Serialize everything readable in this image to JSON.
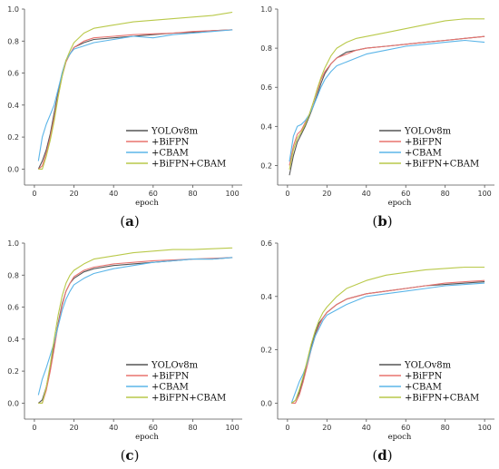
{
  "chart_data": [
    {
      "type": "line",
      "caption": "a",
      "xlabel": "epoch",
      "xlim": [
        -5,
        105
      ],
      "ylim": [
        -0.1,
        1.0
      ],
      "xticks": [
        0,
        20,
        40,
        60,
        80,
        100
      ],
      "yticks": [
        0.0,
        0.2,
        0.4,
        0.6,
        0.8,
        1.0
      ],
      "ytick_labels": [
        "0.0",
        "0.2",
        "0.4",
        "0.6",
        "0.8",
        "1.0"
      ],
      "legend": "lower-right",
      "series": [
        {
          "name": "YOLOv8m",
          "color": "#555555",
          "x": [
            2,
            4,
            6,
            8,
            10,
            12,
            14,
            16,
            18,
            20,
            25,
            30,
            40,
            50,
            60,
            70,
            80,
            90,
            100
          ],
          "y": [
            0.0,
            0.05,
            0.12,
            0.22,
            0.35,
            0.48,
            0.6,
            0.68,
            0.72,
            0.76,
            0.79,
            0.81,
            0.82,
            0.83,
            0.84,
            0.85,
            0.855,
            0.865,
            0.87
          ]
        },
        {
          "name": "+BiFPN",
          "color": "#e8736f",
          "x": [
            2,
            4,
            6,
            8,
            10,
            12,
            14,
            16,
            18,
            20,
            25,
            30,
            40,
            50,
            60,
            70,
            80,
            90,
            100
          ],
          "y": [
            0.0,
            0.02,
            0.1,
            0.2,
            0.32,
            0.46,
            0.58,
            0.67,
            0.72,
            0.76,
            0.8,
            0.82,
            0.83,
            0.84,
            0.845,
            0.85,
            0.86,
            0.865,
            0.87
          ]
        },
        {
          "name": "+CBAM",
          "color": "#5bb5e8",
          "x": [
            2,
            4,
            6,
            8,
            10,
            12,
            14,
            16,
            18,
            20,
            25,
            30,
            40,
            50,
            60,
            70,
            80,
            90,
            100
          ],
          "y": [
            0.05,
            0.2,
            0.28,
            0.34,
            0.4,
            0.5,
            0.6,
            0.68,
            0.72,
            0.75,
            0.77,
            0.79,
            0.81,
            0.83,
            0.82,
            0.84,
            0.85,
            0.86,
            0.87
          ]
        },
        {
          "name": "+BiFPN+CBAM",
          "color": "#b9c94a",
          "x": [
            2,
            4,
            6,
            8,
            10,
            12,
            14,
            16,
            18,
            20,
            25,
            30,
            40,
            50,
            60,
            70,
            80,
            90,
            100
          ],
          "y": [
            0.0,
            0.0,
            0.08,
            0.18,
            0.3,
            0.45,
            0.58,
            0.68,
            0.74,
            0.79,
            0.85,
            0.88,
            0.9,
            0.92,
            0.93,
            0.94,
            0.95,
            0.96,
            0.98
          ]
        }
      ]
    },
    {
      "type": "line",
      "caption": "b",
      "xlabel": "epoch",
      "xlim": [
        -5,
        105
      ],
      "ylim": [
        0.1,
        1.0
      ],
      "xticks": [
        0,
        20,
        40,
        60,
        80,
        100
      ],
      "yticks": [
        0.2,
        0.4,
        0.6,
        0.8,
        1.0
      ],
      "ytick_labels": [
        "0.2",
        "0.4",
        "0.6",
        "0.8",
        "1.0"
      ],
      "legend": "lower-right",
      "series": [
        {
          "name": "YOLOv8m",
          "color": "#555555",
          "x": [
            1,
            3,
            5,
            7,
            9,
            11,
            13,
            15,
            17,
            19,
            22,
            25,
            30,
            35,
            40,
            50,
            60,
            70,
            80,
            90,
            100
          ],
          "y": [
            0.15,
            0.25,
            0.32,
            0.36,
            0.4,
            0.45,
            0.5,
            0.56,
            0.62,
            0.67,
            0.72,
            0.75,
            0.78,
            0.79,
            0.8,
            0.81,
            0.82,
            0.83,
            0.84,
            0.85,
            0.86
          ]
        },
        {
          "name": "+BiFPN",
          "color": "#e8736f",
          "x": [
            1,
            3,
            5,
            7,
            9,
            11,
            13,
            15,
            17,
            19,
            22,
            25,
            30,
            35,
            40,
            50,
            60,
            70,
            80,
            90,
            100
          ],
          "y": [
            0.2,
            0.3,
            0.36,
            0.38,
            0.42,
            0.46,
            0.52,
            0.58,
            0.64,
            0.68,
            0.72,
            0.75,
            0.77,
            0.79,
            0.8,
            0.81,
            0.82,
            0.83,
            0.84,
            0.85,
            0.86
          ]
        },
        {
          "name": "+CBAM",
          "color": "#5bb5e8",
          "x": [
            1,
            3,
            5,
            7,
            9,
            11,
            13,
            15,
            17,
            19,
            22,
            25,
            30,
            35,
            40,
            50,
            60,
            70,
            80,
            90,
            100
          ],
          "y": [
            0.22,
            0.35,
            0.4,
            0.41,
            0.43,
            0.46,
            0.5,
            0.55,
            0.6,
            0.64,
            0.68,
            0.71,
            0.73,
            0.75,
            0.77,
            0.79,
            0.81,
            0.82,
            0.83,
            0.84,
            0.83
          ]
        },
        {
          "name": "+BiFPN+CBAM",
          "color": "#b9c94a",
          "x": [
            1,
            3,
            5,
            7,
            9,
            11,
            13,
            15,
            17,
            19,
            22,
            25,
            30,
            35,
            40,
            50,
            60,
            70,
            80,
            90,
            100
          ],
          "y": [
            0.18,
            0.28,
            0.34,
            0.37,
            0.41,
            0.46,
            0.52,
            0.59,
            0.65,
            0.7,
            0.76,
            0.8,
            0.83,
            0.85,
            0.86,
            0.88,
            0.9,
            0.92,
            0.94,
            0.95,
            0.95
          ]
        }
      ]
    },
    {
      "type": "line",
      "caption": "c",
      "xlabel": "epoch",
      "xlim": [
        -5,
        105
      ],
      "ylim": [
        -0.1,
        1.0
      ],
      "xticks": [
        0,
        20,
        40,
        60,
        80,
        100
      ],
      "yticks": [
        0.0,
        0.2,
        0.4,
        0.6,
        0.8,
        1.0
      ],
      "ytick_labels": [
        "0.0",
        "0.2",
        "0.4",
        "0.6",
        "0.8",
        "1.0"
      ],
      "legend": "lower-right",
      "series": [
        {
          "name": "YOLOv8m",
          "color": "#555555",
          "x": [
            2,
            4,
            6,
            8,
            10,
            12,
            14,
            16,
            18,
            20,
            25,
            30,
            40,
            50,
            60,
            70,
            80,
            90,
            100
          ],
          "y": [
            0.0,
            0.02,
            0.1,
            0.22,
            0.36,
            0.5,
            0.62,
            0.7,
            0.75,
            0.78,
            0.82,
            0.84,
            0.86,
            0.87,
            0.88,
            0.89,
            0.9,
            0.9,
            0.91
          ]
        },
        {
          "name": "+BiFPN",
          "color": "#e8736f",
          "x": [
            2,
            4,
            6,
            8,
            10,
            12,
            14,
            16,
            18,
            20,
            25,
            30,
            40,
            50,
            60,
            70,
            80,
            90,
            100
          ],
          "y": [
            0.0,
            0.0,
            0.08,
            0.2,
            0.34,
            0.49,
            0.61,
            0.7,
            0.75,
            0.79,
            0.83,
            0.85,
            0.87,
            0.88,
            0.89,
            0.895,
            0.9,
            0.905,
            0.91
          ]
        },
        {
          "name": "+CBAM",
          "color": "#5bb5e8",
          "x": [
            2,
            4,
            6,
            8,
            10,
            12,
            14,
            16,
            18,
            20,
            25,
            30,
            40,
            50,
            60,
            70,
            80,
            90,
            100
          ],
          "y": [
            0.05,
            0.15,
            0.22,
            0.3,
            0.38,
            0.48,
            0.58,
            0.65,
            0.7,
            0.74,
            0.78,
            0.81,
            0.84,
            0.86,
            0.88,
            0.89,
            0.9,
            0.9,
            0.91
          ]
        },
        {
          "name": "+BiFPN+CBAM",
          "color": "#b9c94a",
          "x": [
            2,
            4,
            6,
            8,
            10,
            12,
            14,
            16,
            18,
            20,
            25,
            30,
            40,
            50,
            60,
            70,
            80,
            90,
            100
          ],
          "y": [
            0.0,
            0.0,
            0.1,
            0.24,
            0.4,
            0.55,
            0.67,
            0.75,
            0.8,
            0.83,
            0.87,
            0.9,
            0.92,
            0.94,
            0.95,
            0.96,
            0.96,
            0.965,
            0.97
          ]
        }
      ]
    },
    {
      "type": "line",
      "caption": "d",
      "xlabel": "epoch",
      "xlim": [
        -5,
        105
      ],
      "ylim": [
        -0.06,
        0.6
      ],
      "xticks": [
        0,
        20,
        40,
        60,
        80,
        100
      ],
      "yticks": [
        0.0,
        0.2,
        0.4,
        0.6
      ],
      "ytick_labels": [
        "0.0",
        "0.2",
        "0.4",
        "0.6"
      ],
      "legend": "lower-right",
      "series": [
        {
          "name": "YOLOv8m",
          "color": "#555555",
          "x": [
            2,
            4,
            6,
            8,
            10,
            12,
            14,
            16,
            18,
            20,
            25,
            30,
            40,
            50,
            60,
            70,
            80,
            90,
            100
          ],
          "y": [
            0.0,
            0.01,
            0.04,
            0.09,
            0.15,
            0.21,
            0.26,
            0.3,
            0.32,
            0.34,
            0.37,
            0.39,
            0.41,
            0.42,
            0.43,
            0.44,
            0.445,
            0.45,
            0.455
          ]
        },
        {
          "name": "+BiFPN",
          "color": "#e8736f",
          "x": [
            2,
            4,
            6,
            8,
            10,
            12,
            14,
            16,
            18,
            20,
            25,
            30,
            40,
            50,
            60,
            70,
            80,
            90,
            100
          ],
          "y": [
            0.0,
            0.0,
            0.03,
            0.08,
            0.14,
            0.2,
            0.25,
            0.29,
            0.32,
            0.34,
            0.37,
            0.39,
            0.41,
            0.42,
            0.43,
            0.44,
            0.45,
            0.455,
            0.46
          ]
        },
        {
          "name": "+CBAM",
          "color": "#5bb5e8",
          "x": [
            2,
            4,
            6,
            8,
            10,
            12,
            14,
            16,
            18,
            20,
            25,
            30,
            40,
            50,
            60,
            70,
            80,
            90,
            100
          ],
          "y": [
            0.0,
            0.04,
            0.08,
            0.11,
            0.15,
            0.2,
            0.25,
            0.28,
            0.31,
            0.33,
            0.35,
            0.37,
            0.4,
            0.41,
            0.42,
            0.43,
            0.44,
            0.445,
            0.45
          ]
        },
        {
          "name": "+BiFPN+CBAM",
          "color": "#b9c94a",
          "x": [
            2,
            4,
            6,
            8,
            10,
            12,
            14,
            16,
            18,
            20,
            25,
            30,
            40,
            50,
            60,
            70,
            80,
            90,
            100
          ],
          "y": [
            0.0,
            0.01,
            0.05,
            0.1,
            0.16,
            0.22,
            0.27,
            0.31,
            0.34,
            0.36,
            0.4,
            0.43,
            0.46,
            0.48,
            0.49,
            0.5,
            0.505,
            0.51,
            0.51
          ]
        }
      ]
    }
  ]
}
